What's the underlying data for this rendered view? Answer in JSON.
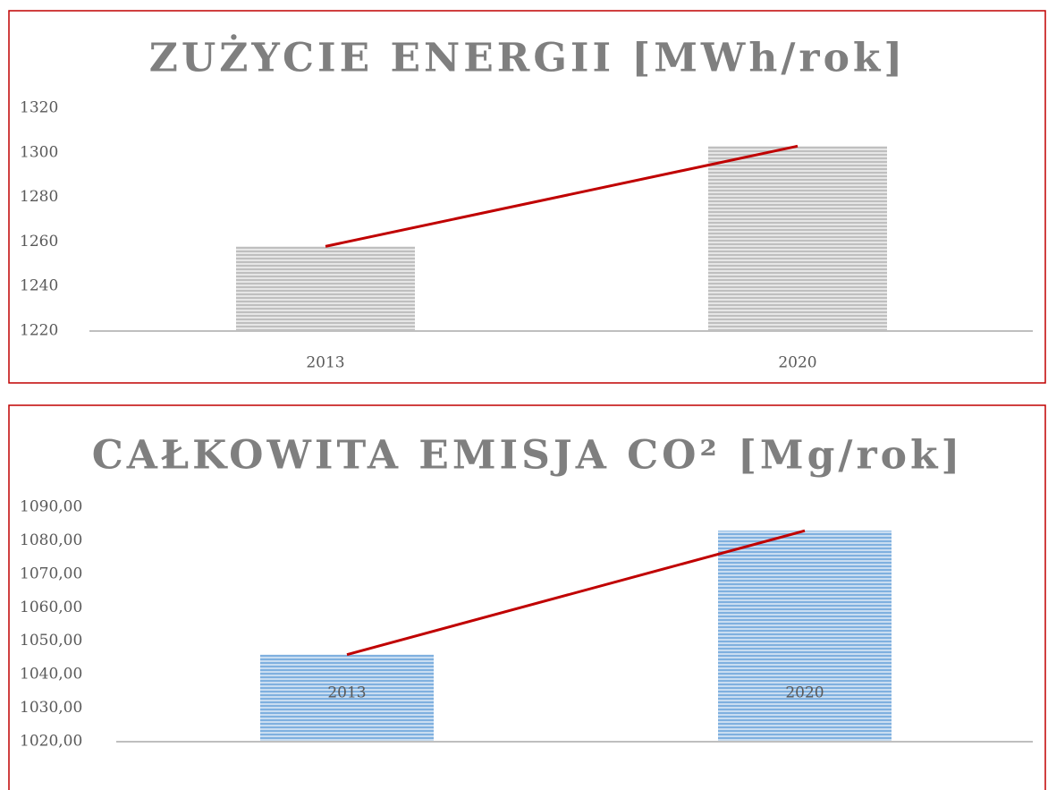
{
  "chart_data": [
    {
      "type": "bar",
      "title": "ZUŻYCIE ENERGII [MWh/rok]",
      "categories": [
        "2013",
        "2020"
      ],
      "values": [
        1258,
        1303
      ],
      "color": "#bfbfbf",
      "line_values": [
        1258,
        1303
      ],
      "line_color": "#c00000",
      "ylim": [
        1220,
        1320
      ],
      "yticks": [
        1220,
        1240,
        1260,
        1280,
        1300,
        1320
      ],
      "grid": false
    },
    {
      "type": "bar",
      "title": "CAŁKOWITA EMISJA CO² [Mg/rok]",
      "categories": [
        "2013",
        "2020"
      ],
      "values": [
        1046,
        1083
      ],
      "color": "#9dc3e6",
      "line_values": [
        1046,
        1083
      ],
      "line_color": "#c00000",
      "ylim": [
        1020,
        1090
      ],
      "yticks": [
        {
          "value": 1020,
          "label": "1020,00"
        },
        {
          "value": 1030,
          "label": "1030,00"
        },
        {
          "value": 1040,
          "label": "1040,00"
        },
        {
          "value": 1050,
          "label": "1050,00"
        },
        {
          "value": 1060,
          "label": "1060,00"
        },
        {
          "value": 1070,
          "label": "1070,00"
        },
        {
          "value": 1080,
          "label": "1080,00"
        },
        {
          "value": 1090,
          "label": "1090,00"
        }
      ],
      "grid": false
    }
  ]
}
